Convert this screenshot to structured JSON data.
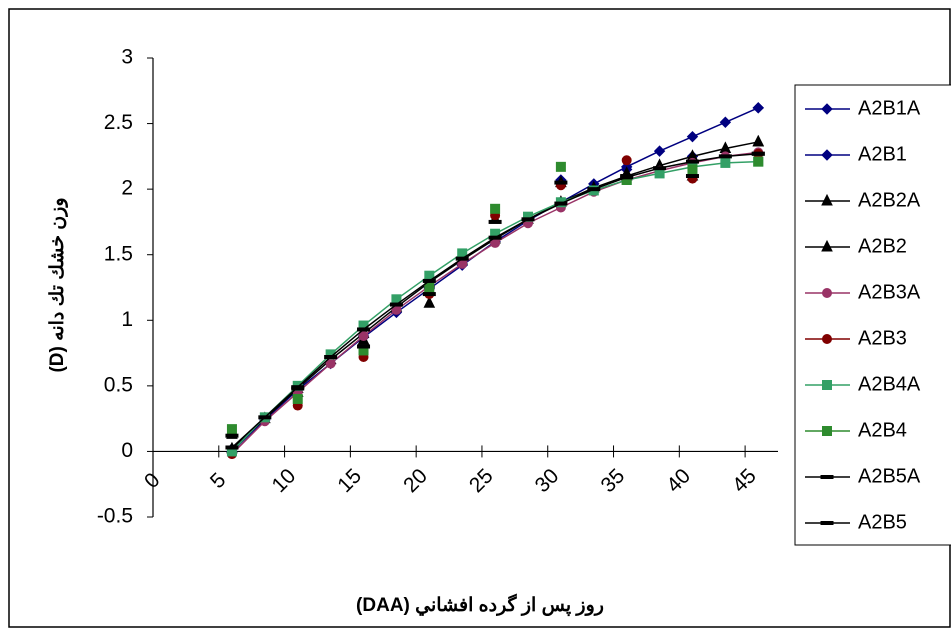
{
  "chart_data": {
    "type": "line",
    "y_axis_title": "وزن خشك تك دانه (D)",
    "x_axis_title": "روز پس از گرده افشاني (DAA)",
    "x": [
      6,
      8.5,
      11,
      13.5,
      16,
      18.5,
      21,
      23.5,
      26,
      28.5,
      31,
      33.5,
      36,
      38.5,
      41,
      43.5,
      46
    ],
    "xlim": [
      0,
      47.5
    ],
    "xticks": [
      0,
      5,
      10,
      15,
      20,
      25,
      30,
      35,
      40,
      45
    ],
    "ylim": [
      -0.5,
      3
    ],
    "yticks": [
      3,
      2.5,
      2,
      1.5,
      1,
      0.5,
      0,
      -0.5
    ],
    "legend": "right",
    "series": [
      {
        "name": "A2B1A",
        "color": "#000080",
        "marker": "diamond",
        "values": [
          0.0,
          0.24,
          0.47,
          0.67,
          0.87,
          1.06,
          1.24,
          1.42,
          1.6,
          1.76,
          1.9,
          2.04,
          2.17,
          2.29,
          2.4,
          2.51,
          2.62
        ]
      },
      {
        "name": "A2B1",
        "color": "#000080",
        "marker": "diamond",
        "values": [
          0.02,
          null,
          0.47,
          null,
          0.88,
          null,
          1.25,
          null,
          1.62,
          null,
          2.07,
          null,
          2.15,
          null,
          2.25,
          null,
          2.62
        ]
      },
      {
        "name": "A2B2A",
        "color": "#000000",
        "marker": "triangle",
        "values": [
          0.02,
          0.25,
          0.48,
          0.7,
          0.9,
          1.1,
          1.29,
          1.46,
          1.62,
          1.77,
          1.9,
          2.01,
          2.1,
          2.18,
          2.25,
          2.31,
          2.36
        ]
      },
      {
        "name": "A2B2",
        "color": "#000000",
        "marker": "triangle",
        "values": [
          0.13,
          null,
          0.45,
          null,
          0.85,
          null,
          1.13,
          null,
          1.77,
          null,
          2.05,
          null,
          2.12,
          null,
          2.1,
          null,
          2.36
        ]
      },
      {
        "name": "A2B3A",
        "color": "#993366",
        "marker": "circle",
        "values": [
          -0.02,
          0.23,
          0.45,
          0.67,
          0.88,
          1.08,
          1.26,
          1.43,
          1.59,
          1.74,
          1.86,
          1.98,
          2.07,
          2.14,
          2.2,
          2.25,
          2.28
        ]
      },
      {
        "name": "A2B3",
        "color": "#800000",
        "marker": "circle",
        "values": [
          -0.02,
          null,
          0.35,
          null,
          0.72,
          null,
          1.2,
          null,
          1.8,
          null,
          2.03,
          null,
          2.22,
          null,
          2.08,
          null,
          2.27
        ]
      },
      {
        "name": "A2B4A",
        "color": "#33a066",
        "marker": "square",
        "values": [
          0.0,
          0.26,
          0.5,
          0.74,
          0.96,
          1.16,
          1.34,
          1.51,
          1.66,
          1.79,
          1.9,
          1.99,
          2.07,
          2.12,
          2.17,
          2.2,
          2.21
        ]
      },
      {
        "name": "A2B4",
        "color": "#2e8b2e",
        "marker": "square",
        "values": [
          0.17,
          null,
          0.4,
          null,
          0.77,
          null,
          1.25,
          null,
          1.85,
          null,
          2.17,
          null,
          2.07,
          null,
          2.15,
          null,
          2.21
        ]
      },
      {
        "name": "A2B5A",
        "color": "#000000",
        "marker": "dash",
        "values": [
          0.03,
          0.26,
          0.49,
          0.72,
          0.93,
          1.12,
          1.3,
          1.47,
          1.63,
          1.77,
          1.89,
          2.0,
          2.09,
          2.16,
          2.21,
          2.25,
          2.27
        ]
      },
      {
        "name": "A2B5",
        "color": "#000000",
        "marker": "dash",
        "values": [
          0.12,
          null,
          0.48,
          null,
          0.8,
          null,
          1.2,
          null,
          1.75,
          null,
          2.05,
          null,
          2.1,
          null,
          2.1,
          null,
          2.27
        ]
      }
    ]
  }
}
